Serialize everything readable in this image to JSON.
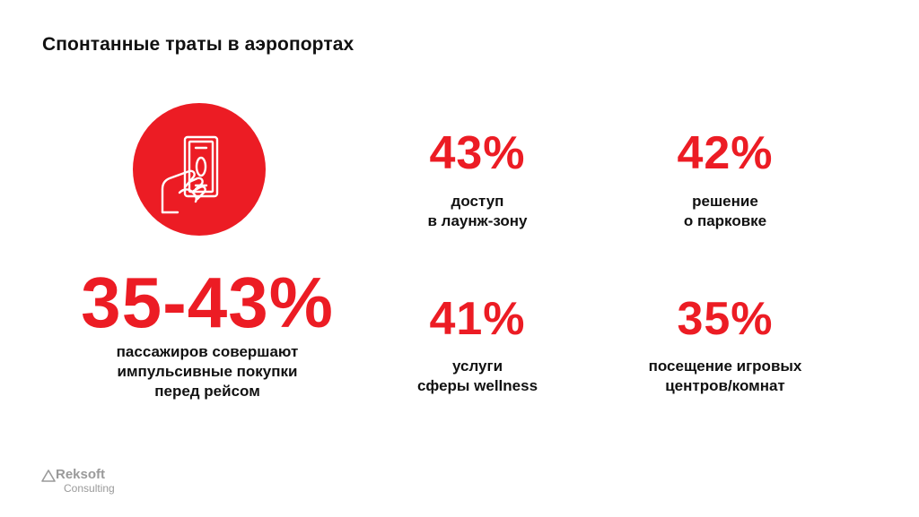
{
  "title": "Спонтанные траты в аэропортах",
  "icon": "hand-holding-banknote-icon",
  "colors": {
    "accent": "#ec1c24",
    "text": "#111111",
    "logo": "#9a9a9a"
  },
  "main_stat": {
    "value": "35-43%",
    "description_lines": [
      "пассажиров совершают",
      "импульсивные покупки",
      "перед рейсом"
    ]
  },
  "stats": [
    {
      "value": "43%",
      "label_lines": [
        "доступ",
        "в лаунж-зону"
      ]
    },
    {
      "value": "42%",
      "label_lines": [
        "решение",
        "о парковке"
      ]
    },
    {
      "value": "41%",
      "label_lines": [
        "услуги",
        "сферы wellness"
      ]
    },
    {
      "value": "35%",
      "label_lines": [
        "посещение игровых",
        "центров/комнат"
      ]
    }
  ],
  "logo": {
    "name": "Reksoft",
    "sub": "Consulting"
  }
}
